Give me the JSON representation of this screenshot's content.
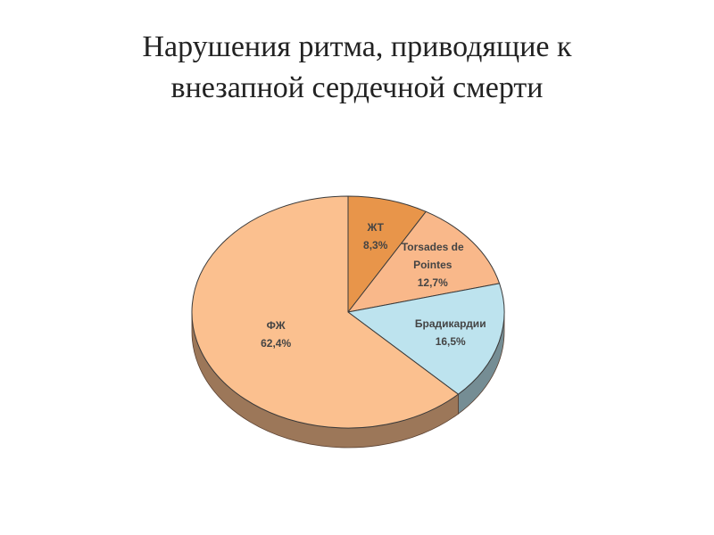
{
  "chart_data": {
    "type": "pie",
    "title": "Нарушения ритма, приводящие к внезапной сердечной смерти",
    "categories": [
      "ЖТ",
      "Torsades de Pointes",
      "Брадикардии",
      "ФЖ"
    ],
    "values": [
      8.3,
      12.7,
      16.5,
      62.4
    ],
    "value_labels": [
      "8,3%",
      "12,7%",
      "16,5%",
      "62,4%"
    ],
    "colors": [
      "#e8954a",
      "#f9b88a",
      "#bde3ee",
      "#fbc08f"
    ]
  }
}
